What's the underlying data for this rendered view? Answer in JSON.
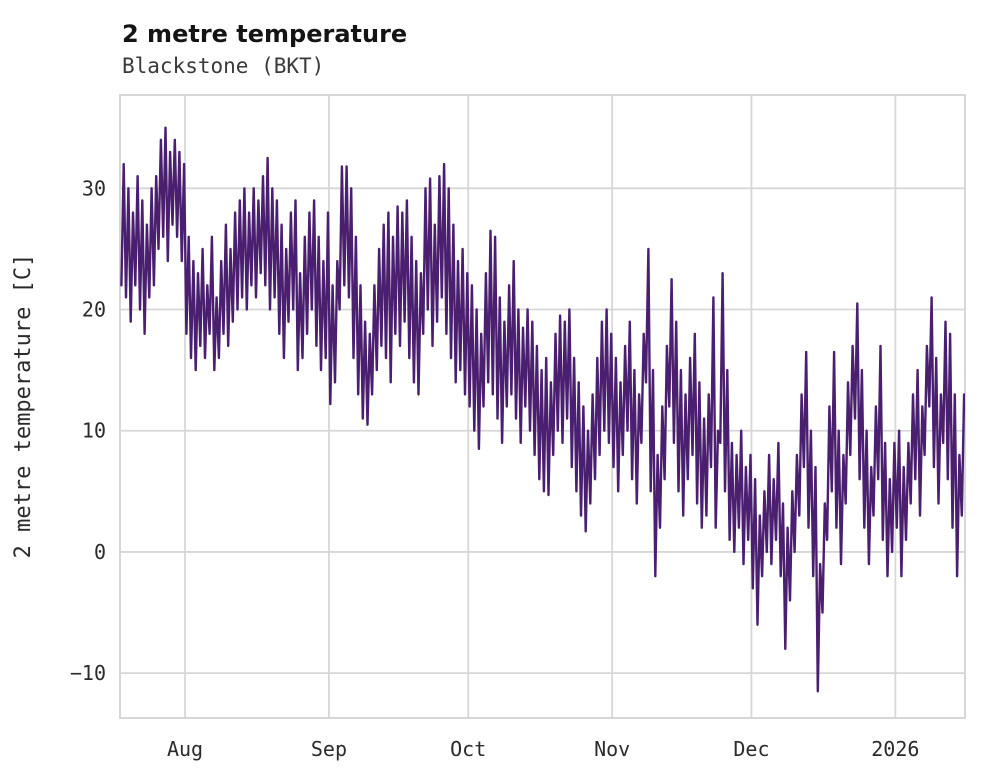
{
  "title": "2 metre temperature",
  "subtitle": "Blackstone (BKT)",
  "chart_data": {
    "type": "line",
    "title": "2 metre temperature",
    "subtitle": "Blackstone (BKT)",
    "station": "Blackstone (BKT)",
    "ylabel": "2 metre temperature [C]",
    "xlabel": "",
    "legend": "none",
    "grid": "on",
    "line_color": "#4b1f6f",
    "grid_color": "#d7d7d7",
    "background_color": "#ffffff",
    "ylim": [
      -13.7,
      37.7
    ],
    "xlim_days": [
      0,
      182
    ],
    "y_ticks": [
      -10,
      0,
      10,
      20,
      30
    ],
    "x_ticks": [
      {
        "label": "Aug",
        "day": 14
      },
      {
        "label": "Sep",
        "day": 45
      },
      {
        "label": "Oct",
        "day": 75
      },
      {
        "label": "Nov",
        "day": 106
      },
      {
        "label": "Dec",
        "day": 136
      },
      {
        "label": "2026",
        "day": 167
      }
    ],
    "x_units": "days from series start (mid-July) through mid-January",
    "series_description": "Daily [min,max] 2 m temperature in C; line oscillates diurnally between them",
    "daily_min_max": [
      [
        22,
        32
      ],
      [
        21,
        30
      ],
      [
        19,
        28
      ],
      [
        22,
        31
      ],
      [
        20,
        29
      ],
      [
        18,
        27
      ],
      [
        21,
        30
      ],
      [
        22,
        31
      ],
      [
        25,
        34
      ],
      [
        26,
        35
      ],
      [
        24,
        33
      ],
      [
        27,
        34
      ],
      [
        26,
        33
      ],
      [
        24,
        32
      ],
      [
        18,
        26
      ],
      [
        16,
        24
      ],
      [
        15,
        23
      ],
      [
        17,
        25
      ],
      [
        16,
        22
      ],
      [
        18,
        26
      ],
      [
        15,
        21
      ],
      [
        16,
        24
      ],
      [
        18,
        27
      ],
      [
        17,
        25
      ],
      [
        19,
        28
      ],
      [
        20,
        29
      ],
      [
        21,
        30
      ],
      [
        20,
        28
      ],
      [
        22,
        30
      ],
      [
        21,
        29
      ],
      [
        23,
        31
      ],
      [
        22,
        32.5
      ],
      [
        20,
        30
      ],
      [
        21,
        29
      ],
      [
        18,
        27
      ],
      [
        16,
        25
      ],
      [
        19,
        28
      ],
      [
        20,
        29
      ],
      [
        15,
        23
      ],
      [
        16,
        26
      ],
      [
        18,
        28
      ],
      [
        20,
        29
      ],
      [
        17,
        26
      ],
      [
        15,
        24
      ],
      [
        16,
        28
      ],
      [
        12.2,
        22
      ],
      [
        14,
        24
      ],
      [
        20,
        31.8
      ],
      [
        22,
        31.8
      ],
      [
        21,
        30
      ],
      [
        16,
        26
      ],
      [
        13,
        22
      ],
      [
        11,
        19
      ],
      [
        10.5,
        18
      ],
      [
        13,
        22
      ],
      [
        15,
        25
      ],
      [
        17,
        27
      ],
      [
        16,
        28
      ],
      [
        14,
        26
      ],
      [
        18,
        28.5
      ],
      [
        17,
        28
      ],
      [
        19,
        29
      ],
      [
        16,
        26
      ],
      [
        14,
        24
      ],
      [
        13,
        23
      ],
      [
        18,
        30
      ],
      [
        20,
        30.8
      ],
      [
        17,
        27
      ],
      [
        19,
        31
      ],
      [
        21,
        32
      ],
      [
        18,
        30
      ],
      [
        16,
        27
      ],
      [
        14,
        24
      ],
      [
        15,
        25
      ],
      [
        13,
        23
      ],
      [
        12,
        22
      ],
      [
        10,
        20
      ],
      [
        8.5,
        18
      ],
      [
        12,
        23
      ],
      [
        14,
        26.5
      ],
      [
        13,
        26
      ],
      [
        11,
        21
      ],
      [
        9,
        19
      ],
      [
        12,
        22
      ],
      [
        13,
        24
      ],
      [
        11,
        20
      ],
      [
        9,
        18.5
      ],
      [
        12,
        20
      ],
      [
        10,
        19
      ],
      [
        8,
        17
      ],
      [
        6,
        15
      ],
      [
        5,
        16
      ],
      [
        4.7,
        14
      ],
      [
        8,
        18
      ],
      [
        10,
        19.5
      ],
      [
        9,
        19
      ],
      [
        11,
        20
      ],
      [
        7,
        16
      ],
      [
        5,
        14
      ],
      [
        3,
        12
      ],
      [
        1.7,
        10
      ],
      [
        4,
        13
      ],
      [
        6,
        16
      ],
      [
        8,
        19
      ],
      [
        10,
        20
      ],
      [
        9,
        18
      ],
      [
        7,
        16
      ],
      [
        5,
        14
      ],
      [
        8,
        17
      ],
      [
        10,
        19
      ],
      [
        6,
        15
      ],
      [
        4,
        13
      ],
      [
        9,
        18
      ],
      [
        14,
        25
      ],
      [
        5,
        15
      ],
      [
        -2,
        8
      ],
      [
        2,
        12
      ],
      [
        6,
        17
      ],
      [
        12,
        22.5
      ],
      [
        9,
        19
      ],
      [
        5,
        15
      ],
      [
        3,
        13
      ],
      [
        6,
        16
      ],
      [
        8,
        18
      ],
      [
        4,
        14
      ],
      [
        2,
        11
      ],
      [
        3,
        13
      ],
      [
        7,
        21
      ],
      [
        2,
        10
      ],
      [
        9,
        23
      ],
      [
        5,
        15
      ],
      [
        1,
        9
      ],
      [
        0,
        8
      ],
      [
        2,
        10
      ],
      [
        -1,
        7
      ],
      [
        1,
        8
      ],
      [
        -3,
        6
      ],
      [
        -6,
        3
      ],
      [
        -2,
        5
      ],
      [
        0,
        8
      ],
      [
        -1,
        6
      ],
      [
        1,
        9
      ],
      [
        -2,
        4
      ],
      [
        -8,
        2
      ],
      [
        -4,
        5
      ],
      [
        0,
        8
      ],
      [
        3,
        13
      ],
      [
        7,
        16.5
      ],
      [
        2,
        10
      ],
      [
        -2,
        7
      ],
      [
        -11.5,
        -1
      ],
      [
        -5,
        4
      ],
      [
        1,
        12
      ],
      [
        5,
        16.5
      ],
      [
        2,
        10
      ],
      [
        -1,
        8
      ],
      [
        4,
        14
      ],
      [
        8,
        17
      ],
      [
        11,
        20.5
      ],
      [
        6,
        15
      ],
      [
        2,
        10
      ],
      [
        -1,
        7
      ],
      [
        3,
        12
      ],
      [
        6,
        17
      ],
      [
        1,
        9
      ],
      [
        -2,
        6
      ],
      [
        0,
        9
      ],
      [
        2,
        10
      ],
      [
        -2,
        7
      ],
      [
        1,
        9
      ],
      [
        4,
        13
      ],
      [
        6,
        15
      ],
      [
        3,
        12
      ],
      [
        8,
        17
      ],
      [
        12,
        21
      ],
      [
        7,
        16
      ],
      [
        4,
        13
      ],
      [
        9,
        19
      ],
      [
        6,
        18
      ],
      [
        2,
        13
      ],
      [
        -2,
        8
      ],
      [
        3,
        13
      ]
    ]
  }
}
